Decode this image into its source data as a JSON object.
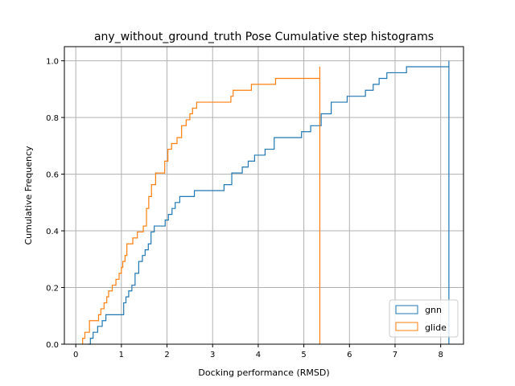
{
  "chart_data": {
    "type": "line",
    "title": "any_without_ground_truth Pose Cumulative step histograms",
    "xlabel": "Docking performance (RMSD)",
    "ylabel": "Cumulative Frequency",
    "xlim": [
      -0.25,
      8.5
    ],
    "ylim": [
      0,
      1.05
    ],
    "xticks": [
      0,
      1,
      2,
      3,
      4,
      5,
      6,
      7,
      8
    ],
    "yticks": [
      0.0,
      0.2,
      0.4,
      0.6,
      0.8,
      1.0
    ],
    "xtick_labels": [
      "0",
      "1",
      "2",
      "3",
      "4",
      "5",
      "6",
      "7",
      "8"
    ],
    "ytick_labels": [
      "0.0",
      "0.2",
      "0.4",
      "0.6",
      "0.8",
      "1.0"
    ],
    "grid": true,
    "legend_position": "lower-right",
    "series": [
      {
        "name": "gnn",
        "color": "#1f77b4",
        "x": [
          0.27,
          0.32,
          0.38,
          0.48,
          0.58,
          0.66,
          0.82,
          0.98,
          1.05,
          1.1,
          1.16,
          1.23,
          1.3,
          1.38,
          1.46,
          1.52,
          1.59,
          1.65,
          1.72,
          1.96,
          2.03,
          2.11,
          2.18,
          2.28,
          2.6,
          3.25,
          3.42,
          3.65,
          3.78,
          3.92,
          4.15,
          4.35,
          4.55,
          4.95,
          5.15,
          5.38,
          5.6,
          5.95,
          6.35,
          6.52,
          6.65,
          6.82,
          7.25,
          8.18
        ],
        "y": [
          0.0,
          0.021,
          0.042,
          0.063,
          0.083,
          0.104,
          0.104,
          0.104,
          0.146,
          0.167,
          0.188,
          0.208,
          0.25,
          0.292,
          0.313,
          0.333,
          0.354,
          0.396,
          0.417,
          0.438,
          0.458,
          0.479,
          0.5,
          0.521,
          0.542,
          0.563,
          0.604,
          0.625,
          0.646,
          0.667,
          0.688,
          0.729,
          0.729,
          0.75,
          0.771,
          0.813,
          0.854,
          0.875,
          0.896,
          0.917,
          0.938,
          0.958,
          0.979,
          1.0
        ]
      },
      {
        "name": "glide",
        "color": "#ff7f0e",
        "x": [
          0.15,
          0.2,
          0.3,
          0.5,
          0.55,
          0.62,
          0.68,
          0.72,
          0.8,
          0.88,
          0.95,
          1.0,
          1.03,
          1.08,
          1.12,
          1.25,
          1.35,
          1.48,
          1.55,
          1.6,
          1.66,
          1.75,
          1.95,
          2.02,
          2.1,
          2.22,
          2.32,
          2.42,
          2.5,
          2.56,
          2.65,
          3.4,
          3.45,
          3.85,
          4.38,
          5.35
        ],
        "y": [
          0.021,
          0.042,
          0.083,
          0.104,
          0.125,
          0.146,
          0.167,
          0.188,
          0.208,
          0.229,
          0.25,
          0.271,
          0.292,
          0.313,
          0.354,
          0.375,
          0.396,
          0.417,
          0.479,
          0.521,
          0.563,
          0.604,
          0.646,
          0.688,
          0.708,
          0.729,
          0.771,
          0.792,
          0.813,
          0.833,
          0.854,
          0.875,
          0.896,
          0.917,
          0.938,
          0.979
        ]
      }
    ]
  }
}
